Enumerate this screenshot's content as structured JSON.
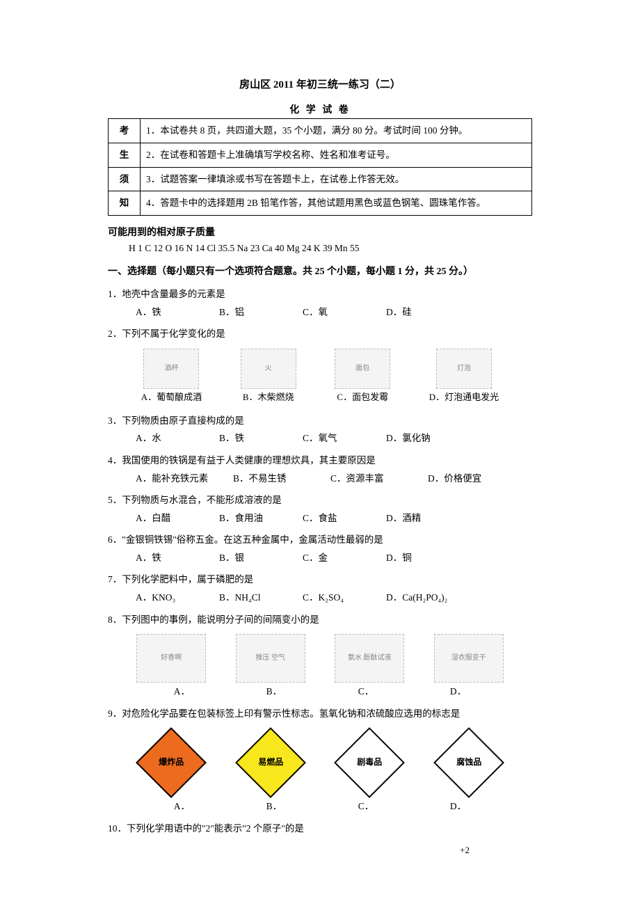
{
  "header": {
    "title": "房山区 2011 年初三统一练习（二）",
    "subtitle": "化 学 试 卷"
  },
  "instructions": {
    "vlabels": [
      "考",
      "生",
      "须",
      "知"
    ],
    "lines": [
      "1．本试卷共 8 页，共四道大题，35 个小题，满分 80 分。考试时间 100 分钟。",
      "2．在试卷和答题卡上准确填写学校名称、姓名和准考证号。",
      "3．试题答案一律填涂或书写在答题卡上，在试卷上作答无效。",
      "4．答题卡中的选择题用 2B 铅笔作答，其他试题用黑色或蓝色钢笔、圆珠笔作答。"
    ]
  },
  "atomic": {
    "label": "可能用到的相对原子质量",
    "values": "H 1   C 12   O 16   N 14   Cl 35.5   Na 23   Ca 40   Mg 24   K 39   Mn 55"
  },
  "section1_head": "一、选择题（每小题只有一个选项符合题意。共 25 个小题，每小题 1 分，共 25 分。）",
  "q1": {
    "stem": "1．地壳中含量最多的元素是",
    "opts": [
      "A．铁",
      "B．铝",
      "C．氧",
      "D．硅"
    ]
  },
  "q2": {
    "stem": "2．下列不属于化学变化的是",
    "img_alt": [
      "酒杯",
      "火",
      "面包",
      "灯泡"
    ],
    "captions": [
      "A．葡萄酿成酒",
      "B．木柴燃烧",
      "C．面包发霉",
      "D．灯泡通电发光"
    ]
  },
  "q3": {
    "stem": "3．下列物质由原子直接构成的是",
    "opts": [
      "A．水",
      "B．铁",
      "C．氧气",
      "D．氯化钠"
    ]
  },
  "q4": {
    "stem": "4．我国使用的铁锅是有益于人类健康的理想炊具，其主要原因是",
    "opts": [
      "A．能补充铁元素",
      "B．不易生锈",
      "C．资源丰富",
      "D．价格便宜"
    ]
  },
  "q5": {
    "stem": "5．下列物质与水混合，不能形成溶液的是",
    "opts": [
      "A．白醋",
      "B．食用油",
      "C．食盐",
      "D．酒精"
    ]
  },
  "q6": {
    "stem": "6．\"金银铜铁锡\"俗称五金。在这五种金属中，金属活动性最弱的是",
    "opts": [
      "A．铁",
      "B．银",
      "C．金",
      "D．铜"
    ]
  },
  "q7": {
    "stem": "7．下列化学肥料中，属于磷肥的是",
    "opts": [
      "A．KNO₃",
      "B．NH₄Cl",
      "C．K₂SO₄",
      "D．Ca(H₂PO₄)₂"
    ]
  },
  "q8": {
    "stem": "8．下列图中的事例，能说明分子间的间隔变小的是",
    "img_alt": [
      "好香啊",
      "推压 空气",
      "氨水 酚酞试液",
      "湿衣服变干"
    ],
    "letters": [
      "A．",
      "B．",
      "C．",
      "D．"
    ]
  },
  "q9": {
    "stem": "9．对危险化学品要在包装标签上印有警示性标志。氢氧化钠和浓硫酸应选用的标志是",
    "labels": [
      "爆炸品",
      "易燃品",
      "剧毒品",
      "腐蚀品"
    ],
    "letters": [
      "A．",
      "B．",
      "C．",
      "D．"
    ]
  },
  "q10": {
    "stem": "10．下列化学用语中的\"2\"能表示\"2 个原子\"的是",
    "partial": "+2"
  },
  "colors": {
    "explosive": "#ed6b1f",
    "flammable": "#f8e71c",
    "toxic": "#ffffff",
    "corrosive": "#ffffff",
    "text": "#000000",
    "bg": "#ffffff"
  }
}
